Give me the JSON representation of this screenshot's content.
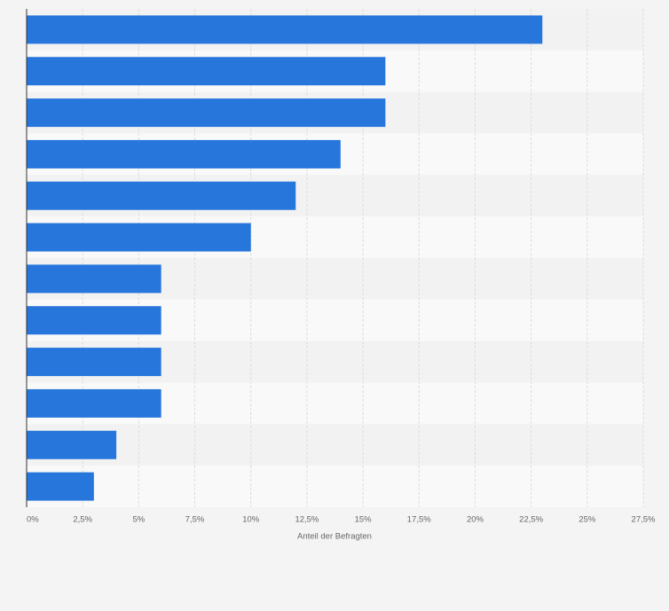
{
  "chart_data": {
    "type": "bar",
    "orientation": "horizontal",
    "x_label": "Anteil der Befragten",
    "categories": [
      null,
      null,
      null,
      null,
      null,
      null,
      null,
      null,
      null,
      null,
      null,
      null
    ],
    "values": [
      23,
      16,
      16,
      14,
      12,
      10,
      6,
      6,
      6,
      6,
      4,
      3
    ],
    "color": "#2776dc",
    "xlim": [
      0,
      27.5
    ],
    "xticks": [
      {
        "value": 0,
        "label": "0%"
      },
      {
        "value": 2.5,
        "label": "2,5%"
      },
      {
        "value": 5,
        "label": "5%"
      },
      {
        "value": 7.5,
        "label": "7,5%"
      },
      {
        "value": 10,
        "label": "10%"
      },
      {
        "value": 12.5,
        "label": "12,5%"
      },
      {
        "value": 15,
        "label": "15%"
      },
      {
        "value": 17.5,
        "label": "17,5%"
      },
      {
        "value": 20,
        "label": "20%"
      },
      {
        "value": 22.5,
        "label": "22,5%"
      },
      {
        "value": 25,
        "label": "25%"
      },
      {
        "value": 27.5,
        "label": "27,5%"
      }
    ],
    "grid": true
  }
}
